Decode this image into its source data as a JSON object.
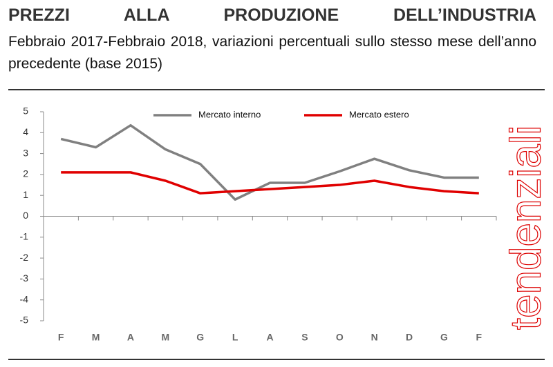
{
  "chart_data": {
    "type": "line",
    "title": "PREZZI ALLA PRODUZIONE DELL’INDUSTRIA",
    "subtitle": "Febbraio 2017-Febbraio 2018, variazioni percentuali sullo stesso mese dell’anno precedente (base 2015)",
    "side_label": "tendenziali",
    "categories": [
      "F",
      "M",
      "A",
      "M",
      "G",
      "L",
      "A",
      "S",
      "O",
      "N",
      "D",
      "G",
      "F"
    ],
    "series": [
      {
        "name": "Mercato interno",
        "color": "#808080",
        "values": [
          3.7,
          3.3,
          4.35,
          3.2,
          2.5,
          0.8,
          1.6,
          1.6,
          2.15,
          2.75,
          2.2,
          1.85,
          1.85
        ]
      },
      {
        "name": "Mercato estero",
        "color": "#e00000",
        "values": [
          2.1,
          2.1,
          2.1,
          1.7,
          1.1,
          1.2,
          1.3,
          1.4,
          1.5,
          1.7,
          1.4,
          1.2,
          1.1
        ]
      }
    ],
    "ylim": [
      -5,
      5
    ],
    "yticks": [
      -5,
      -4,
      -3,
      -2,
      -1,
      0,
      1,
      2,
      3,
      4,
      5
    ],
    "grid": false
  }
}
